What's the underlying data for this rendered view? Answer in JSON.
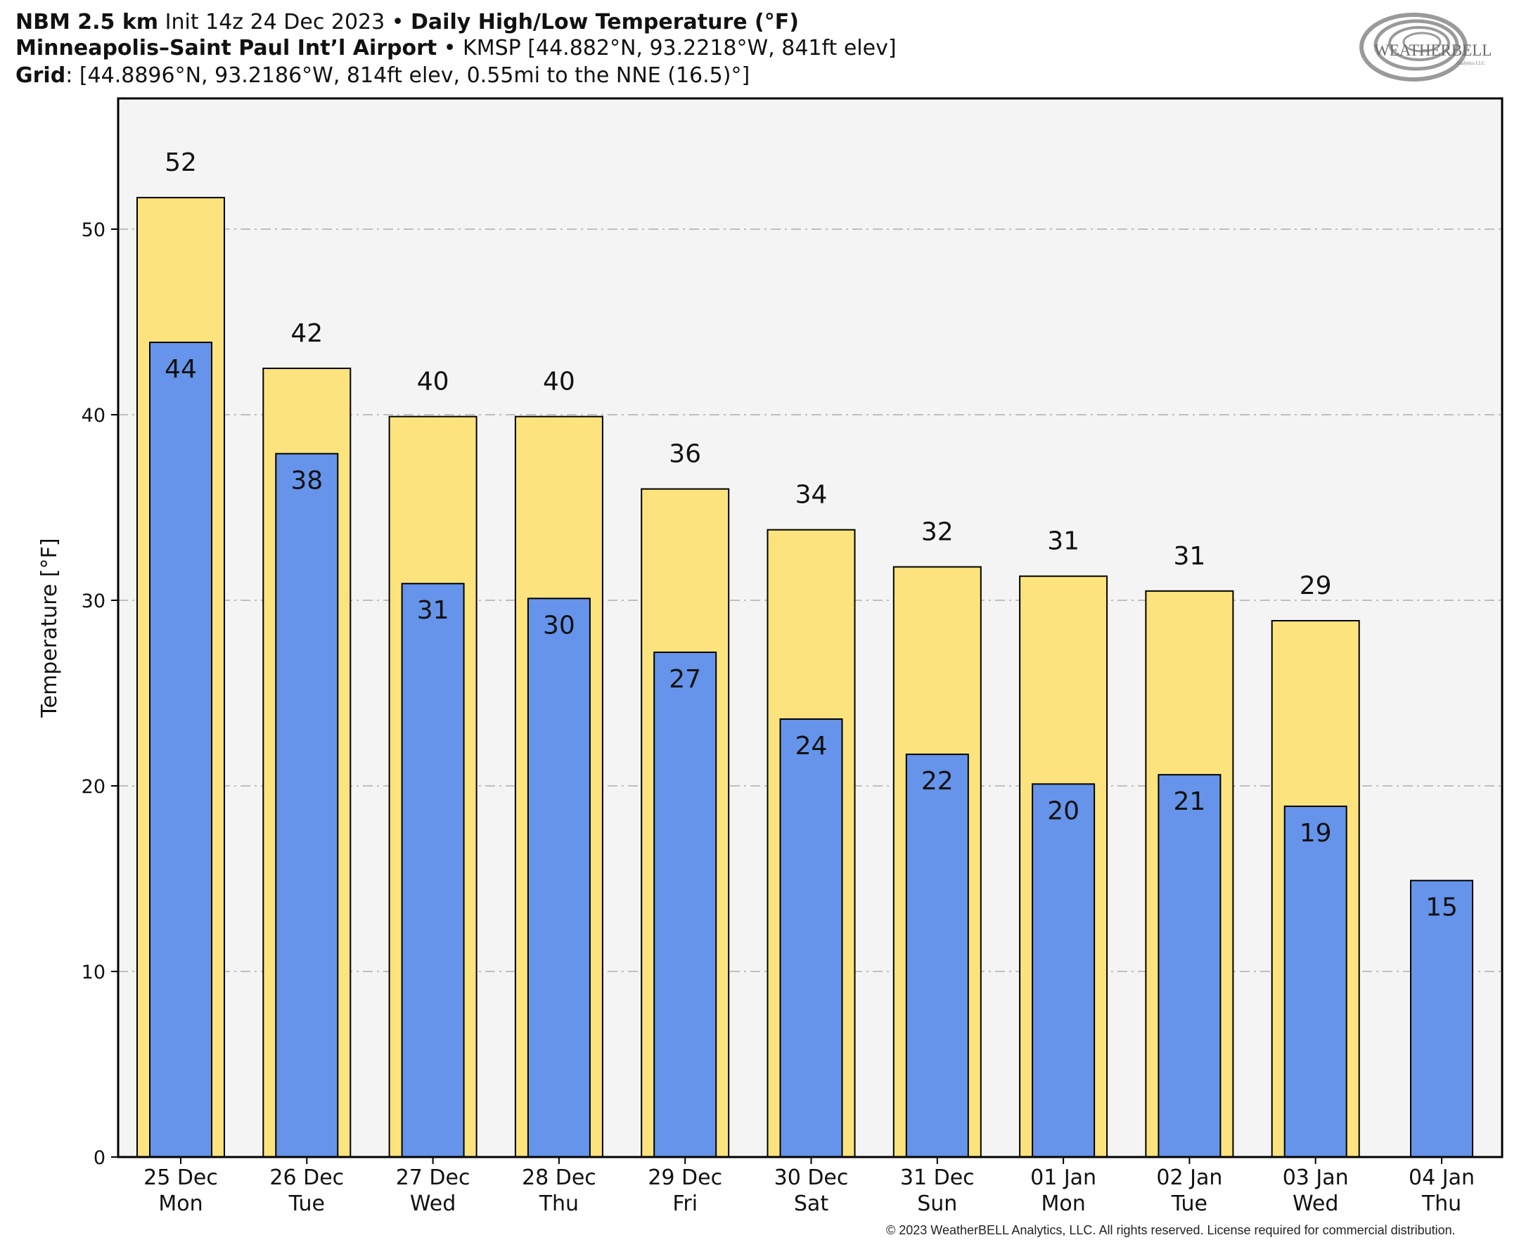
{
  "header": {
    "model": "NBM 2.5 km",
    "init": "Init 14z 24 Dec 2023",
    "bullet": "•",
    "product": "Daily High/Low Temperature (°F)",
    "station_name": "Minneapolis–Saint Paul Int’l Airport",
    "station_info": "KMSP [44.882°N, 93.2218°W, 841ft elev]",
    "grid_label": "Grid",
    "grid_info": ": [44.8896°N, 93.2186°W, 814ft elev, 0.55mi to the NNE (16.5)°]"
  },
  "logo": {
    "text_big": "WEATHERBELL",
    "text_small": "Analytics LLC"
  },
  "copyright": "© 2023 WeatherBELL Analytics, LLC. All rights reserved. License required for commercial distribution.",
  "colors": {
    "high": "#FCE37E",
    "low": "#6594EA",
    "plot_bg": "#F4F4F5",
    "grid": "#BFBFBF"
  },
  "chart_data": {
    "type": "bar",
    "ylabel": "Temperature [°F]",
    "ylim": [
      0,
      56
    ],
    "yticks": [
      0,
      10,
      20,
      30,
      40,
      50
    ],
    "grid": true,
    "categories": [
      [
        "25 Dec",
        "Mon"
      ],
      [
        "26 Dec",
        "Tue"
      ],
      [
        "27 Dec",
        "Wed"
      ],
      [
        "28 Dec",
        "Thu"
      ],
      [
        "29 Dec",
        "Fri"
      ],
      [
        "30 Dec",
        "Sat"
      ],
      [
        "31 Dec",
        "Sun"
      ],
      [
        "01 Jan",
        "Mon"
      ],
      [
        "02 Jan",
        "Tue"
      ],
      [
        "03 Jan",
        "Wed"
      ],
      [
        "04 Jan",
        "Thu"
      ]
    ],
    "series": [
      {
        "name": "High",
        "values": [
          51.7,
          42.5,
          39.9,
          39.9,
          36.0,
          33.8,
          31.8,
          31.3,
          30.5,
          28.9,
          null
        ],
        "labels": [
          "52",
          "42",
          "40",
          "40",
          "36",
          "34",
          "32",
          "31",
          "31",
          "29",
          ""
        ]
      },
      {
        "name": "Low",
        "values": [
          43.9,
          37.9,
          30.9,
          30.1,
          27.2,
          23.6,
          21.7,
          20.1,
          20.6,
          18.9,
          14.9
        ],
        "labels": [
          "44",
          "38",
          "31",
          "30",
          "27",
          "24",
          "22",
          "20",
          "21",
          "19",
          "15"
        ]
      }
    ]
  }
}
